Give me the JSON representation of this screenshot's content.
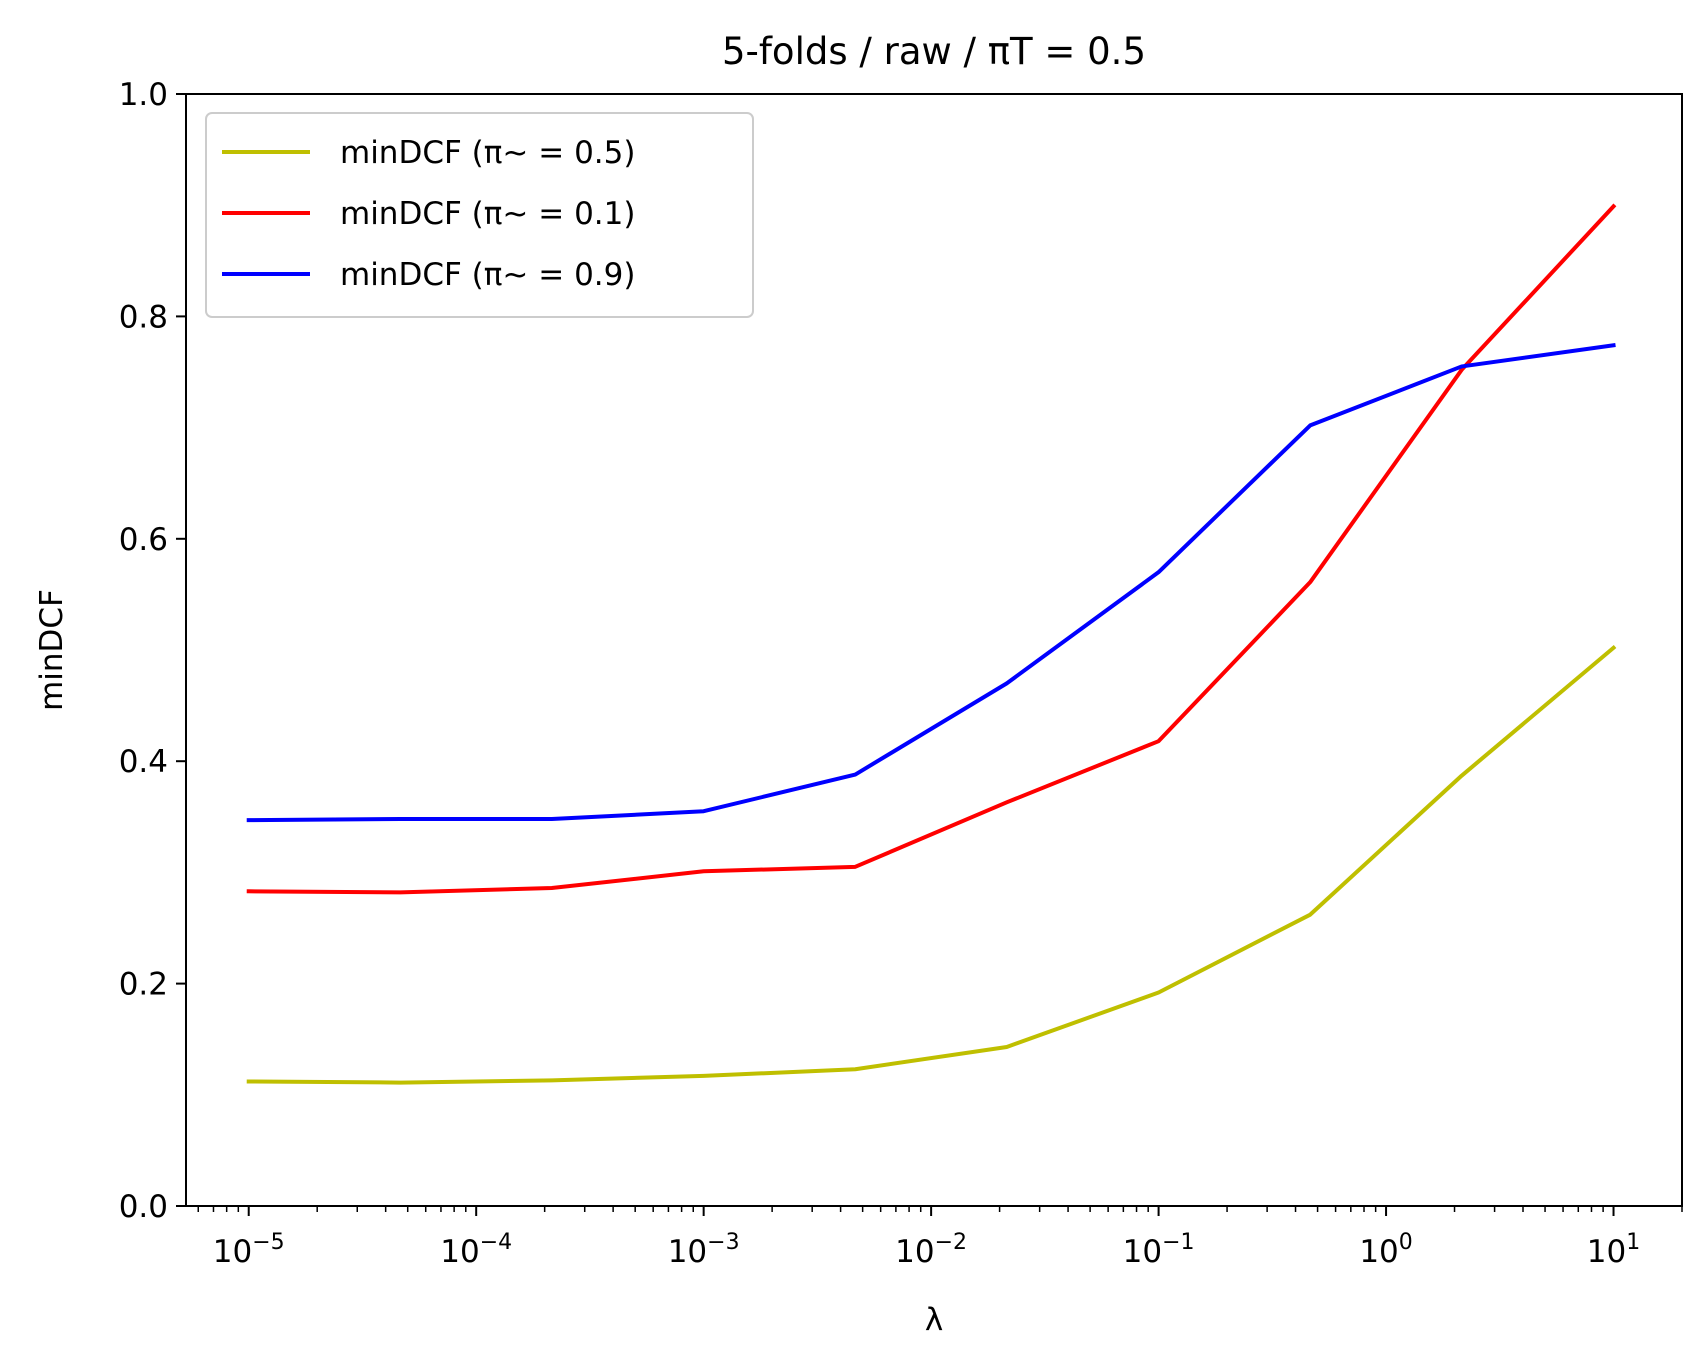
{
  "chart_data": {
    "type": "line",
    "title": "5-folds / raw / πT = 0.5",
    "xlabel": "λ",
    "ylabel": "minDCF",
    "xscale": "log",
    "xlim": [
      5.3e-06,
      20
    ],
    "ylim": [
      0.0,
      1.0
    ],
    "grid": false,
    "legend_position": "upper left",
    "x": [
      1e-05,
      4.64e-05,
      0.000215,
      0.001,
      0.00464,
      0.0215,
      0.1,
      0.464,
      2.15,
      10
    ],
    "x_ticks": [
      {
        "value": 1e-05,
        "base": "10",
        "exp": "−5"
      },
      {
        "value": 0.0001,
        "base": "10",
        "exp": "−4"
      },
      {
        "value": 0.001,
        "base": "10",
        "exp": "−3"
      },
      {
        "value": 0.01,
        "base": "10",
        "exp": "−2"
      },
      {
        "value": 0.1,
        "base": "10",
        "exp": "−1"
      },
      {
        "value": 1,
        "base": "10",
        "exp": "0"
      },
      {
        "value": 10,
        "base": "10",
        "exp": "1"
      }
    ],
    "y_ticks": [
      {
        "value": 0.0,
        "label": "0.0"
      },
      {
        "value": 0.2,
        "label": "0.2"
      },
      {
        "value": 0.4,
        "label": "0.4"
      },
      {
        "value": 0.6,
        "label": "0.6"
      },
      {
        "value": 0.8,
        "label": "0.8"
      },
      {
        "value": 1.0,
        "label": "1.0"
      }
    ],
    "series": [
      {
        "name": "minDCF (π~ = 0.5)",
        "color": "#bfbf00",
        "values": [
          0.112,
          0.111,
          0.113,
          0.117,
          0.123,
          0.143,
          0.192,
          0.262,
          0.387,
          0.502
        ]
      },
      {
        "name": "minDCF (π~ = 0.1)",
        "color": "#ff0000",
        "values": [
          0.283,
          0.282,
          0.286,
          0.301,
          0.305,
          0.363,
          0.418,
          0.561,
          0.752,
          0.899
        ]
      },
      {
        "name": "minDCF (π~ = 0.9)",
        "color": "#0000ff",
        "values": [
          0.347,
          0.348,
          0.348,
          0.355,
          0.388,
          0.47,
          0.57,
          0.702,
          0.755,
          0.774
        ]
      }
    ]
  }
}
